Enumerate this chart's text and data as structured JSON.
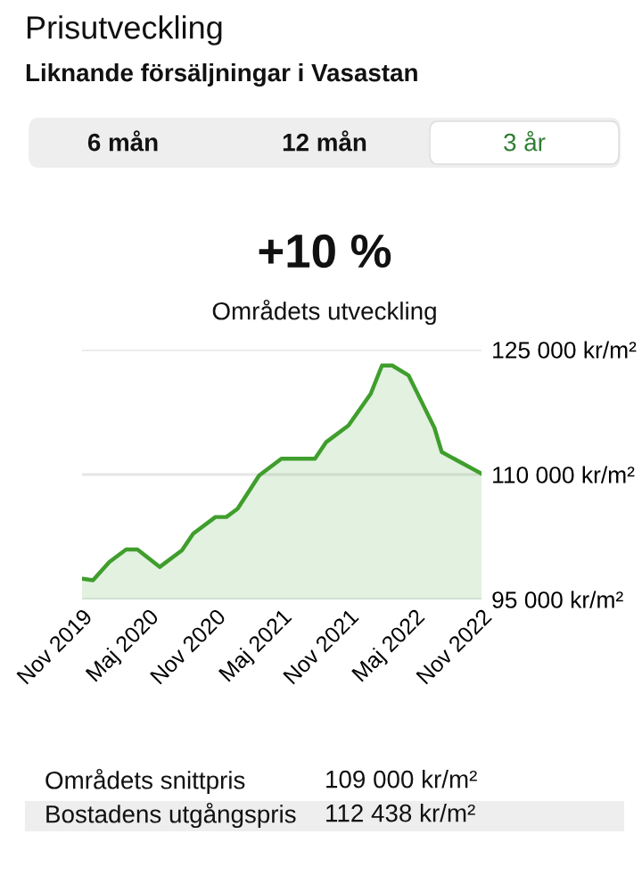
{
  "chart_data": {
    "type": "area",
    "title": "Prisutveckling",
    "subtitle": "Liknande försäljningar i Vasastan",
    "annotations": [
      "6 mån",
      "12 mån",
      "3 år",
      "+10 %",
      "Områdets utveckling",
      "Områdets snittpris",
      "109 000 kr/m²",
      "Bostadens utgångspris",
      "112 438 kr/m²"
    ],
    "x": [
      "2019-11",
      "2019-12",
      "2020-01-15",
      "2020-03",
      "2020-04",
      "2020-06",
      "2020-08",
      "2020-09",
      "2020-11",
      "2020-12",
      "2021-01",
      "2021-03",
      "2021-05",
      "2021-08",
      "2021-09",
      "2021-11",
      "2022-01",
      "2022-02",
      "2022-03",
      "2022-04-15",
      "2022-05-20",
      "2022-06-25",
      "2022-07-15",
      "2022-11"
    ],
    "series": [
      {
        "color": "#3f9e2c",
        "values": [
          97500,
          97300,
          99500,
          101000,
          101000,
          98900,
          100900,
          102900,
          104900,
          104900,
          105900,
          109900,
          111900,
          111900,
          113900,
          115900,
          119700,
          123100,
          123100,
          121900,
          118800,
          115600,
          112700,
          110100
        ]
      }
    ],
    "xlim": [
      "2019-11",
      "2022-11"
    ],
    "xticks": [
      {
        "value": "2019-11",
        "label": "Nov 2019"
      },
      {
        "value": "2020-05",
        "label": "Maj 2020"
      },
      {
        "value": "2020-11",
        "label": "Nov 2020"
      },
      {
        "value": "2021-05",
        "label": "Maj 2021"
      },
      {
        "value": "2021-11",
        "label": "Nov 2021"
      },
      {
        "value": "2022-05",
        "label": "Maj 2022"
      },
      {
        "value": "2022-11",
        "label": "Nov 2022"
      }
    ],
    "ylim": [
      95000,
      125000
    ],
    "yticks": [
      {
        "value": 95000,
        "label": "95 000 kr/m²"
      },
      {
        "value": 110000,
        "label": "110 000 kr/m²"
      },
      {
        "value": 125000,
        "label": "125 000 kr/m²"
      }
    ],
    "grid": "y"
  }
}
